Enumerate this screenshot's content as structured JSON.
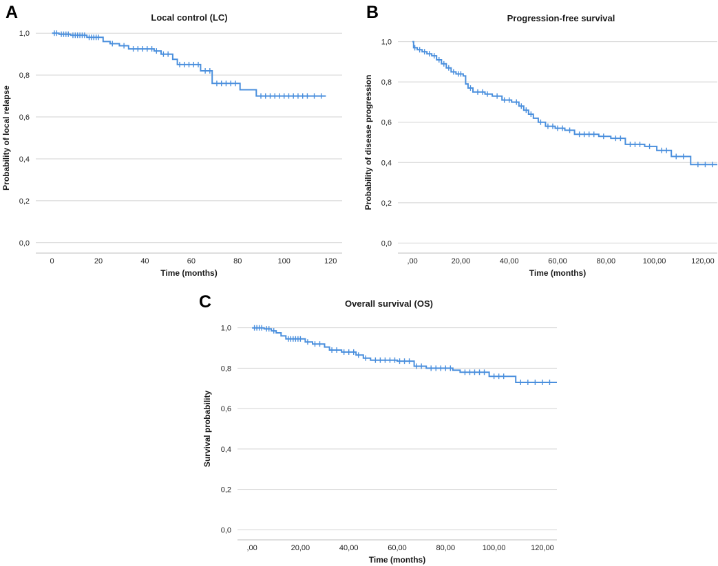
{
  "chart_data": [
    {
      "type": "line",
      "panel_label": "A",
      "title": "Local control (LC)",
      "xlabel": "Time (months)",
      "ylabel": "Probability of local relapse",
      "x_ticks": [
        0,
        20,
        40,
        60,
        80,
        100,
        120
      ],
      "x_tick_labels": [
        "0",
        "20",
        "40",
        "60",
        "80",
        "100",
        "120"
      ],
      "xlim": [
        -7,
        125
      ],
      "y_ticks": [
        0,
        0.2,
        0.4,
        0.6,
        0.8,
        1.0
      ],
      "y_tick_labels": [
        "0,0",
        "0,2",
        "0,4",
        "0,6",
        "0,8",
        "1,0"
      ],
      "ylim": [
        -0.05,
        1.05
      ],
      "grid": true,
      "series": [
        {
          "name": "LC",
          "color": "#4a8fdd",
          "steps": [
            [
              0,
              1.0
            ],
            [
              3,
              0.995
            ],
            [
              8,
              0.99
            ],
            [
              15,
              0.98
            ],
            [
              22,
              0.96
            ],
            [
              25,
              0.95
            ],
            [
              29,
              0.94
            ],
            [
              33,
              0.925
            ],
            [
              44,
              0.915
            ],
            [
              47,
              0.9
            ],
            [
              52,
              0.875
            ],
            [
              54,
              0.85
            ],
            [
              64,
              0.82
            ],
            [
              69,
              0.76
            ],
            [
              81,
              0.73
            ],
            [
              88,
              0.7
            ],
            [
              118,
              0.7
            ]
          ],
          "censored": [
            [
              1,
              1.0
            ],
            [
              2,
              1.0
            ],
            [
              4,
              0.995
            ],
            [
              5,
              0.995
            ],
            [
              6,
              0.995
            ],
            [
              7,
              0.995
            ],
            [
              9,
              0.99
            ],
            [
              10,
              0.99
            ],
            [
              11,
              0.99
            ],
            [
              12,
              0.99
            ],
            [
              13,
              0.99
            ],
            [
              14,
              0.99
            ],
            [
              16,
              0.98
            ],
            [
              17,
              0.98
            ],
            [
              18,
              0.98
            ],
            [
              19,
              0.98
            ],
            [
              20,
              0.98
            ],
            [
              26,
              0.95
            ],
            [
              31,
              0.94
            ],
            [
              35,
              0.925
            ],
            [
              37,
              0.925
            ],
            [
              39,
              0.925
            ],
            [
              41,
              0.925
            ],
            [
              43,
              0.925
            ],
            [
              45,
              0.915
            ],
            [
              48,
              0.9
            ],
            [
              50,
              0.9
            ],
            [
              55,
              0.85
            ],
            [
              57,
              0.85
            ],
            [
              59,
              0.85
            ],
            [
              61,
              0.85
            ],
            [
              63,
              0.85
            ],
            [
              66,
              0.82
            ],
            [
              68,
              0.82
            ],
            [
              71,
              0.76
            ],
            [
              73,
              0.76
            ],
            [
              75,
              0.76
            ],
            [
              77,
              0.76
            ],
            [
              79,
              0.76
            ],
            [
              90,
              0.7
            ],
            [
              92,
              0.7
            ],
            [
              94,
              0.7
            ],
            [
              96,
              0.7
            ],
            [
              98,
              0.7
            ],
            [
              100,
              0.7
            ],
            [
              102,
              0.7
            ],
            [
              104,
              0.7
            ],
            [
              106,
              0.7
            ],
            [
              108,
              0.7
            ],
            [
              110,
              0.7
            ],
            [
              113,
              0.7
            ],
            [
              116,
              0.7
            ]
          ]
        }
      ]
    },
    {
      "type": "line",
      "panel_label": "B",
      "title": "Progression-free survival",
      "xlabel": "Time (months)",
      "ylabel": "Probability of disease progression",
      "x_ticks": [
        0,
        20,
        40,
        60,
        80,
        100,
        120
      ],
      "x_tick_labels": [
        ",00",
        "20,00",
        "40,00",
        "60,00",
        "80,00",
        "100,00",
        "120,00"
      ],
      "xlim": [
        -6,
        126
      ],
      "y_ticks": [
        0,
        0.2,
        0.4,
        0.6,
        0.8,
        1.0
      ],
      "y_tick_labels": [
        "0,0",
        "0,2",
        "0,4",
        "0,6",
        "0,8",
        "1,0"
      ],
      "ylim": [
        -0.05,
        1.05
      ],
      "grid": true,
      "series": [
        {
          "name": "PFS",
          "color": "#4a8fdd",
          "steps": [
            [
              0,
              1.0
            ],
            [
              0.5,
              0.97
            ],
            [
              2,
              0.96
            ],
            [
              4,
              0.95
            ],
            [
              6,
              0.94
            ],
            [
              8,
              0.93
            ],
            [
              10,
              0.91
            ],
            [
              12,
              0.89
            ],
            [
              14,
              0.87
            ],
            [
              16,
              0.85
            ],
            [
              18,
              0.84
            ],
            [
              21,
              0.83
            ],
            [
              22,
              0.79
            ],
            [
              23,
              0.77
            ],
            [
              25,
              0.75
            ],
            [
              30,
              0.74
            ],
            [
              33,
              0.73
            ],
            [
              37,
              0.71
            ],
            [
              41,
              0.7
            ],
            [
              44,
              0.68
            ],
            [
              46,
              0.66
            ],
            [
              48,
              0.64
            ],
            [
              50,
              0.62
            ],
            [
              52,
              0.6
            ],
            [
              55,
              0.58
            ],
            [
              59,
              0.57
            ],
            [
              63,
              0.56
            ],
            [
              67,
              0.54
            ],
            [
              77,
              0.53
            ],
            [
              82,
              0.52
            ],
            [
              88,
              0.49
            ],
            [
              96,
              0.48
            ],
            [
              101,
              0.46
            ],
            [
              107,
              0.43
            ],
            [
              115,
              0.39
            ],
            [
              126,
              0.39
            ]
          ],
          "censored": [
            [
              1,
              0.97
            ],
            [
              3,
              0.96
            ],
            [
              5,
              0.95
            ],
            [
              7,
              0.94
            ],
            [
              9,
              0.93
            ],
            [
              11,
              0.91
            ],
            [
              13,
              0.89
            ],
            [
              15,
              0.87
            ],
            [
              17,
              0.85
            ],
            [
              19,
              0.84
            ],
            [
              20,
              0.84
            ],
            [
              24,
              0.77
            ],
            [
              27,
              0.75
            ],
            [
              29,
              0.75
            ],
            [
              31,
              0.74
            ],
            [
              35,
              0.73
            ],
            [
              38,
              0.71
            ],
            [
              40,
              0.71
            ],
            [
              43,
              0.7
            ],
            [
              45,
              0.68
            ],
            [
              47,
              0.66
            ],
            [
              49,
              0.64
            ],
            [
              53,
              0.6
            ],
            [
              56,
              0.58
            ],
            [
              58,
              0.58
            ],
            [
              60,
              0.57
            ],
            [
              62,
              0.57
            ],
            [
              65,
              0.56
            ],
            [
              69,
              0.54
            ],
            [
              71,
              0.54
            ],
            [
              73,
              0.54
            ],
            [
              75,
              0.54
            ],
            [
              79,
              0.53
            ],
            [
              84,
              0.52
            ],
            [
              86,
              0.52
            ],
            [
              90,
              0.49
            ],
            [
              92,
              0.49
            ],
            [
              94,
              0.49
            ],
            [
              98,
              0.48
            ],
            [
              103,
              0.46
            ],
            [
              105,
              0.46
            ],
            [
              109,
              0.43
            ],
            [
              112,
              0.43
            ],
            [
              118,
              0.39
            ],
            [
              121,
              0.39
            ],
            [
              124,
              0.39
            ]
          ]
        }
      ]
    },
    {
      "type": "line",
      "panel_label": "C",
      "title": "Overall survival (OS)",
      "xlabel": "Time (months)",
      "ylabel": "Survival probability",
      "x_ticks": [
        0,
        20,
        40,
        60,
        80,
        100,
        120
      ],
      "x_tick_labels": [
        ",00",
        "20,00",
        "40,00",
        "60,00",
        "80,00",
        "100,00",
        "120,00"
      ],
      "xlim": [
        -6,
        126
      ],
      "y_ticks": [
        0,
        0.2,
        0.4,
        0.6,
        0.8,
        1.0
      ],
      "y_tick_labels": [
        "0,0",
        "0,2",
        "0,4",
        "0,6",
        "0,8",
        "1,0"
      ],
      "ylim": [
        -0.05,
        1.05
      ],
      "grid": true,
      "series": [
        {
          "name": "OS",
          "color": "#4a8fdd",
          "steps": [
            [
              0,
              1.0
            ],
            [
              5,
              0.995
            ],
            [
              8,
              0.985
            ],
            [
              10,
              0.975
            ],
            [
              12,
              0.96
            ],
            [
              14,
              0.945
            ],
            [
              22,
              0.93
            ],
            [
              25,
              0.92
            ],
            [
              30,
              0.905
            ],
            [
              32,
              0.89
            ],
            [
              37,
              0.88
            ],
            [
              43,
              0.865
            ],
            [
              46,
              0.85
            ],
            [
              49,
              0.84
            ],
            [
              60,
              0.835
            ],
            [
              67,
              0.81
            ],
            [
              72,
              0.8
            ],
            [
              83,
              0.79
            ],
            [
              86,
              0.78
            ],
            [
              98,
              0.76
            ],
            [
              109,
              0.73
            ],
            [
              126,
              0.73
            ]
          ],
          "censored": [
            [
              1,
              1.0
            ],
            [
              2,
              1.0
            ],
            [
              3,
              1.0
            ],
            [
              4,
              1.0
            ],
            [
              6,
              0.995
            ],
            [
              7,
              0.995
            ],
            [
              9,
              0.985
            ],
            [
              15,
              0.945
            ],
            [
              16,
              0.945
            ],
            [
              17,
              0.945
            ],
            [
              18,
              0.945
            ],
            [
              19,
              0.945
            ],
            [
              20,
              0.945
            ],
            [
              23,
              0.93
            ],
            [
              26,
              0.92
            ],
            [
              28,
              0.92
            ],
            [
              33,
              0.89
            ],
            [
              35,
              0.89
            ],
            [
              38,
              0.88
            ],
            [
              40,
              0.88
            ],
            [
              42,
              0.88
            ],
            [
              44,
              0.865
            ],
            [
              47,
              0.85
            ],
            [
              51,
              0.84
            ],
            [
              53,
              0.84
            ],
            [
              55,
              0.84
            ],
            [
              57,
              0.84
            ],
            [
              59,
              0.84
            ],
            [
              61,
              0.835
            ],
            [
              63,
              0.835
            ],
            [
              65,
              0.835
            ],
            [
              68,
              0.81
            ],
            [
              70,
              0.81
            ],
            [
              74,
              0.8
            ],
            [
              76,
              0.8
            ],
            [
              78,
              0.8
            ],
            [
              80,
              0.8
            ],
            [
              82,
              0.8
            ],
            [
              88,
              0.78
            ],
            [
              90,
              0.78
            ],
            [
              92,
              0.78
            ],
            [
              94,
              0.78
            ],
            [
              96,
              0.78
            ],
            [
              100,
              0.76
            ],
            [
              102,
              0.76
            ],
            [
              104,
              0.76
            ],
            [
              111,
              0.73
            ],
            [
              114,
              0.73
            ],
            [
              117,
              0.73
            ],
            [
              120,
              0.73
            ],
            [
              123,
              0.73
            ]
          ]
        }
      ]
    }
  ]
}
